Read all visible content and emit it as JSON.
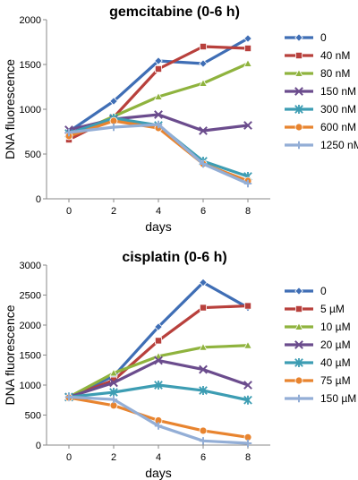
{
  "chart_data": [
    {
      "type": "line",
      "title": "gemcitabine (0-6 h)",
      "xlabel": "days",
      "ylabel": "DNA fluorescence",
      "x": [
        0,
        2,
        4,
        6,
        8
      ],
      "xlim": [
        -1,
        9
      ],
      "ylim": [
        0,
        2000
      ],
      "yticks": [
        0,
        500,
        1000,
        1500,
        2000
      ],
      "xticks": [
        0,
        2,
        4,
        6,
        8
      ],
      "grid": false,
      "legend_position": "right",
      "series": [
        {
          "name": "0",
          "color": "#3f6eb5",
          "marker": "diamond",
          "values": [
            750,
            1090,
            1540,
            1510,
            1790
          ]
        },
        {
          "name": "40 nM",
          "color": "#b8403c",
          "marker": "square",
          "values": [
            660,
            910,
            1450,
            1700,
            1680
          ]
        },
        {
          "name": "80 nM",
          "color": "#8fb33e",
          "marker": "triangle",
          "values": [
            700,
            920,
            1140,
            1290,
            1510
          ]
        },
        {
          "name": "150 nM",
          "color": "#6b4c8d",
          "marker": "x",
          "values": [
            770,
            890,
            940,
            760,
            820
          ]
        },
        {
          "name": "300 nM",
          "color": "#3d9db3",
          "marker": "star",
          "values": [
            730,
            900,
            820,
            420,
            250
          ]
        },
        {
          "name": "600 nM",
          "color": "#e8842f",
          "marker": "circle",
          "values": [
            700,
            870,
            790,
            390,
            200
          ]
        },
        {
          "name": "1250 nM",
          "color": "#93aed6",
          "marker": "plus",
          "values": [
            740,
            800,
            830,
            390,
            170
          ]
        }
      ]
    },
    {
      "type": "line",
      "title": "cisplatin (0-6 h)",
      "xlabel": "days",
      "ylabel": "DNA fluorescence",
      "x": [
        0,
        2,
        4,
        6,
        8
      ],
      "xlim": [
        -1,
        9
      ],
      "ylim": [
        0,
        3000
      ],
      "yticks": [
        0,
        500,
        1000,
        1500,
        2000,
        2500,
        3000
      ],
      "xticks": [
        0,
        2,
        4,
        6,
        8
      ],
      "grid": false,
      "legend_position": "right",
      "series": [
        {
          "name": "0",
          "color": "#3f6eb5",
          "marker": "diamond",
          "values": [
            800,
            1150,
            1970,
            2710,
            2290
          ]
        },
        {
          "name": "5 µM",
          "color": "#b8403c",
          "marker": "square",
          "values": [
            800,
            1080,
            1740,
            2290,
            2320
          ]
        },
        {
          "name": "10 µM",
          "color": "#8fb33e",
          "marker": "triangle",
          "values": [
            800,
            1200,
            1480,
            1630,
            1660
          ]
        },
        {
          "name": "20 µM",
          "color": "#6b4c8d",
          "marker": "x",
          "values": [
            800,
            1040,
            1410,
            1260,
            1000
          ]
        },
        {
          "name": "40 µM",
          "color": "#3d9db3",
          "marker": "star",
          "values": [
            800,
            880,
            1000,
            910,
            750
          ]
        },
        {
          "name": "75 µM",
          "color": "#e8842f",
          "marker": "circle",
          "values": [
            790,
            660,
            410,
            240,
            130
          ]
        },
        {
          "name": "150 µM",
          "color": "#93aed6",
          "marker": "plus",
          "values": [
            800,
            760,
            320,
            70,
            30
          ]
        }
      ]
    }
  ]
}
